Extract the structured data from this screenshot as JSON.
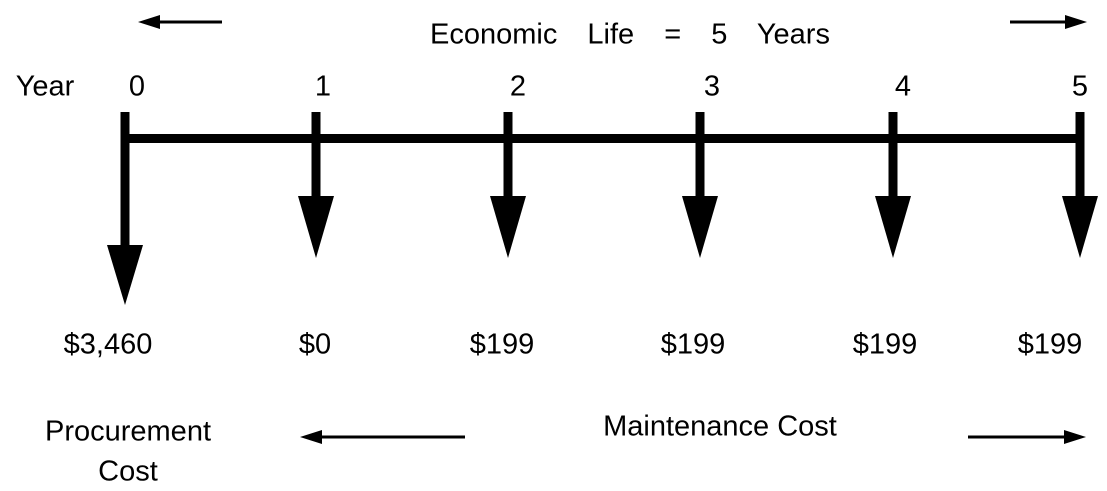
{
  "title": "Economic Life = 5 Years",
  "year_label": "Year",
  "periods": [
    {
      "year": "0",
      "amount": "$3,460"
    },
    {
      "year": "1",
      "amount": "$0"
    },
    {
      "year": "2",
      "amount": "$199"
    },
    {
      "year": "3",
      "amount": "$199"
    },
    {
      "year": "4",
      "amount": "$199"
    },
    {
      "year": "5",
      "amount": "$199"
    }
  ],
  "procurement_label": [
    "Procurement",
    "Cost"
  ],
  "maintenance_label": "Maintenance Cost"
}
